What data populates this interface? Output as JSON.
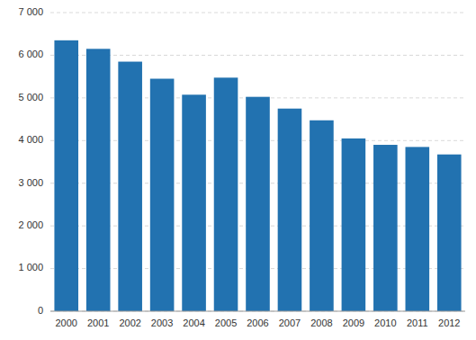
{
  "chart_data": {
    "type": "bar",
    "categories": [
      "2000",
      "2001",
      "2002",
      "2003",
      "2004",
      "2005",
      "2006",
      "2007",
      "2008",
      "2009",
      "2010",
      "2011",
      "2012"
    ],
    "values": [
      6350,
      6150,
      5850,
      5450,
      5075,
      5475,
      5025,
      4750,
      4475,
      4050,
      3900,
      3850,
      3675
    ],
    "color": "#2272b0",
    "ylim": [
      0,
      7000
    ],
    "yticks": [
      0,
      {
        "value": 1000,
        "label": "1 000"
      },
      {
        "value": 2000,
        "label": "2 000"
      },
      {
        "value": 3000,
        "label": "3 000"
      },
      {
        "value": 4000,
        "label": "4 000"
      },
      {
        "value": 5000,
        "label": "5 000"
      },
      {
        "value": 6000,
        "label": "6 000"
      },
      {
        "value": 7000,
        "label": "7 000"
      }
    ],
    "grid": true
  }
}
